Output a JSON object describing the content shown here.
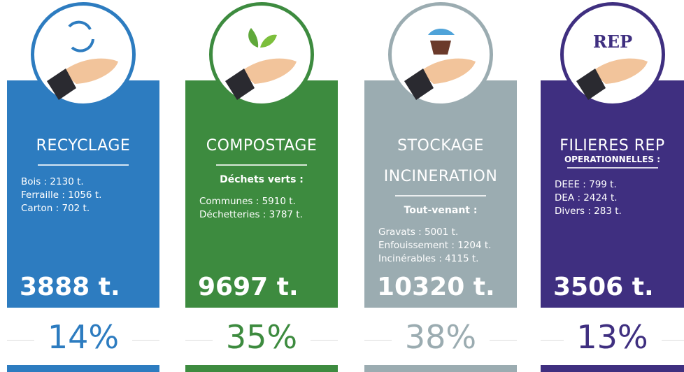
{
  "cards": [
    {
      "title_lines": [
        "RECYCLAGE"
      ],
      "items": [
        "Bois : 2130 t.",
        "Ferraille : 1056 t.",
        "Carton : 702 t."
      ],
      "total": "3888 t.",
      "percent": "14%"
    },
    {
      "title_lines": [
        "COMPOSTAGE"
      ],
      "heading": "Déchets verts :",
      "items": [
        "Communes : 5910 t.",
        "Déchetteries : 3787 t."
      ],
      "total": "9697 t.",
      "percent": "35%"
    },
    {
      "title_lines": [
        "STOCKAGE",
        "INCINERATION"
      ],
      "heading": "Tout-venant :",
      "items": [
        "Gravats : 5001 t.",
        "Enfouissement : 1204 t.",
        "Incinérables : 4115 t."
      ],
      "total": "10320 t.",
      "percent": "38%"
    },
    {
      "title_lines": [
        "FILIERES REP"
      ],
      "subtitle": "OPERATIONNELLES :",
      "items": [
        "DEEE : 799 t.",
        "DEA : 2424 t.",
        "Divers : 283 t."
      ],
      "total": "3506 t.",
      "percent": "13%"
    }
  ]
}
